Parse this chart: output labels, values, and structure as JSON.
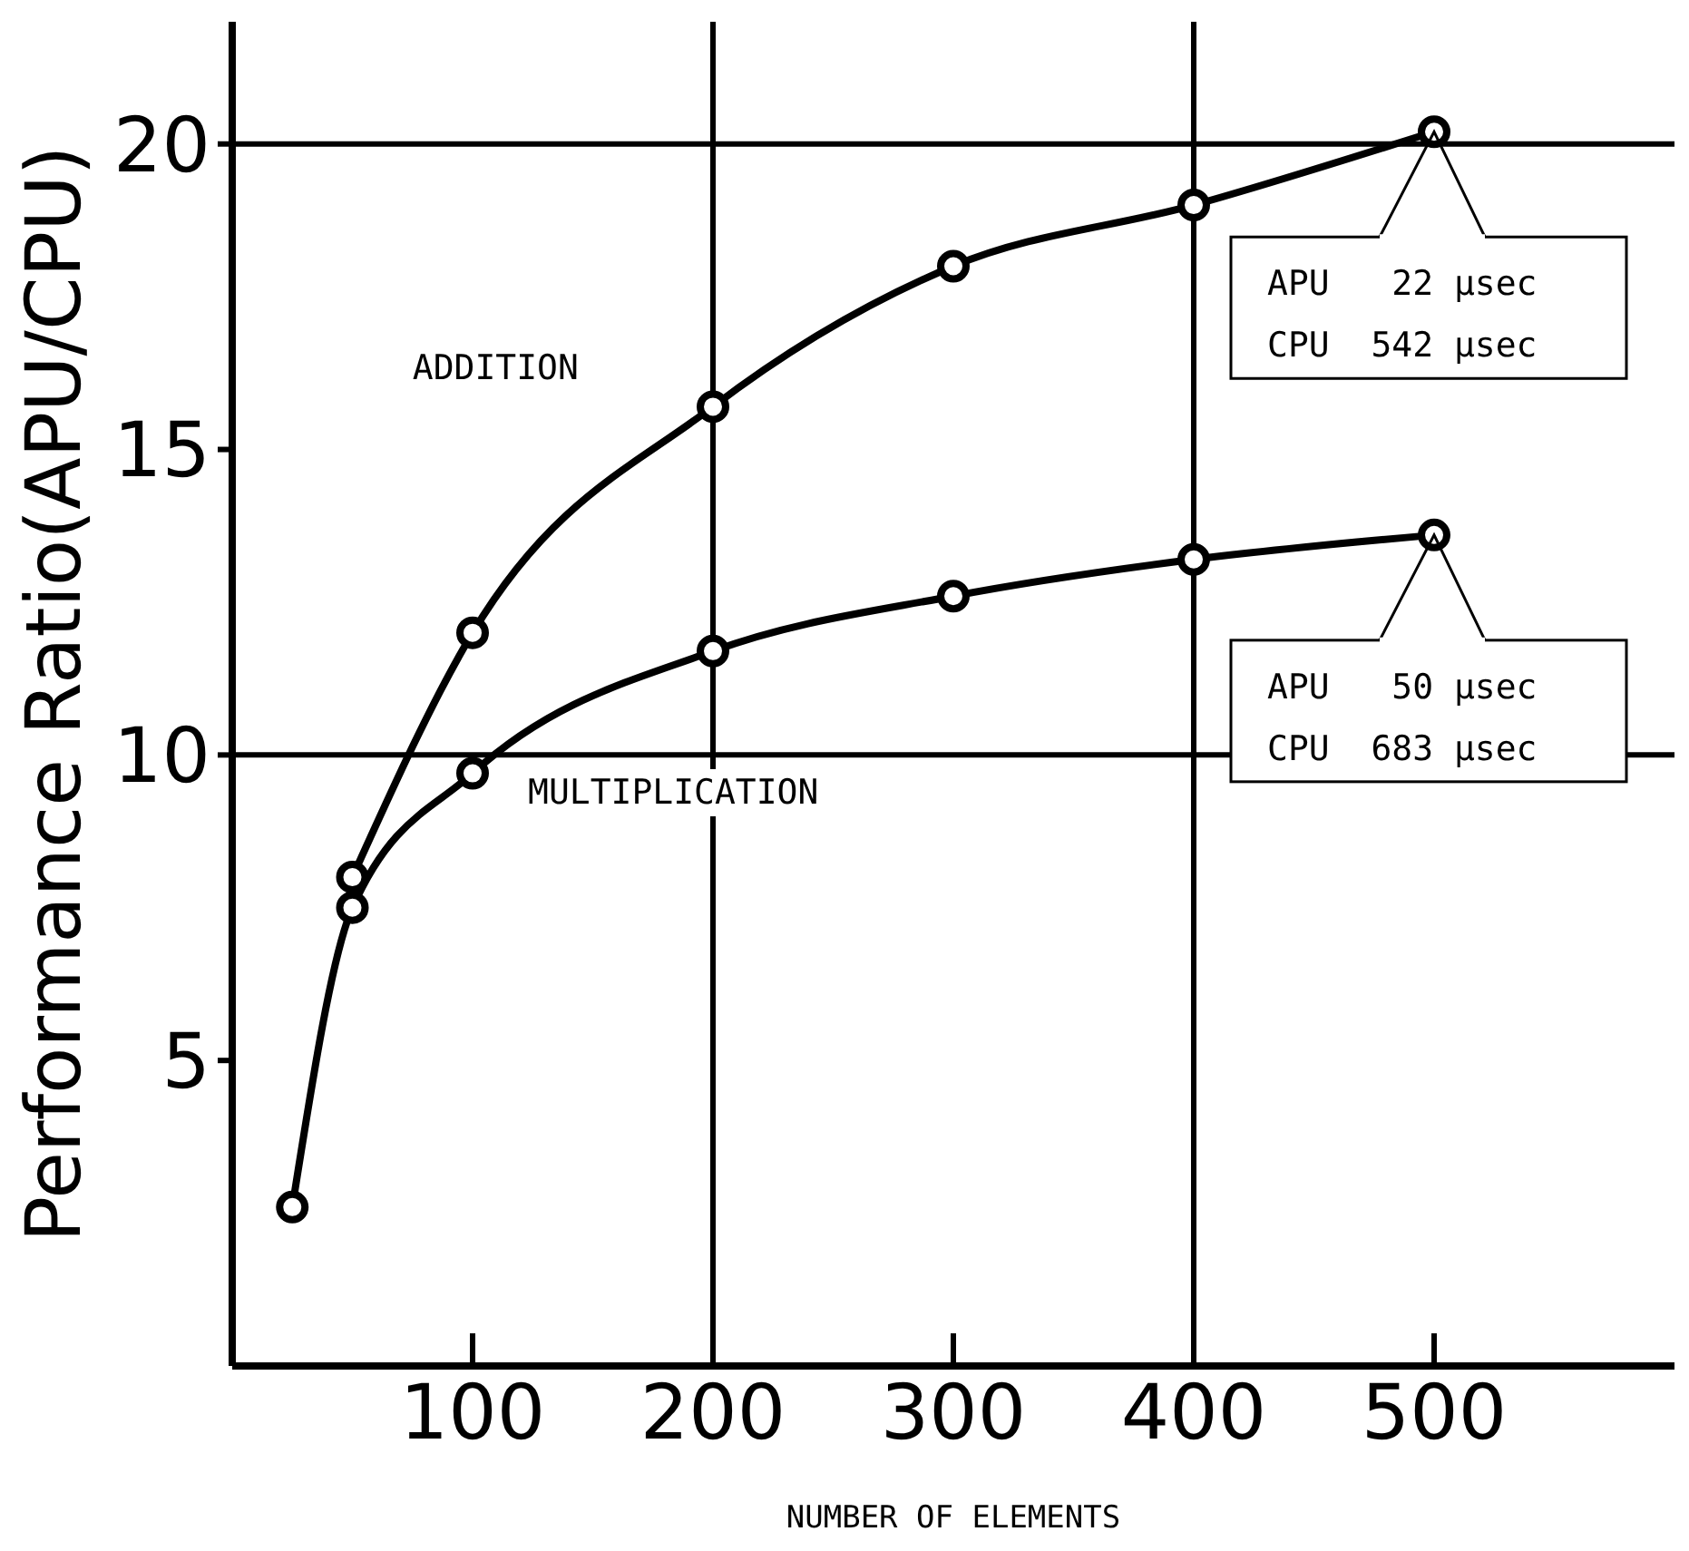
{
  "chart_data": {
    "type": "line",
    "xlabel": "NUMBER OF ELEMENTS",
    "ylabel": "Performance Ratio(APU/CPU)",
    "x": [
      25,
      50,
      100,
      200,
      300,
      400,
      500
    ],
    "series": [
      {
        "name": "ADDITION",
        "color": "#000000",
        "values": [
          null,
          8.0,
          12.0,
          15.7,
          18.0,
          19.0,
          20.2
        ]
      },
      {
        "name": "MULTIPLICATION",
        "color": "#000000",
        "values": [
          2.6,
          7.5,
          9.7,
          11.7,
          12.6,
          13.2,
          13.6
        ]
      }
    ],
    "xlim": [
      0,
      600
    ],
    "xticks": [
      100,
      200,
      300,
      400,
      500
    ],
    "ylim": [
      0,
      22
    ],
    "yticks": [
      5,
      10,
      15,
      20
    ],
    "ref_lines": [
      {
        "axis": "x",
        "value": 200
      },
      {
        "axis": "x",
        "value": 400
      },
      {
        "axis": "y",
        "value": 10
      },
      {
        "axis": "y",
        "value": 20
      }
    ],
    "annotations": [
      "APU   22 µsec",
      "CPU  542 µsec",
      "APU   50 µsec",
      "CPU  683 µsec"
    ],
    "grid": false,
    "legend": false,
    "marker": "circle",
    "line_style": "solid"
  }
}
